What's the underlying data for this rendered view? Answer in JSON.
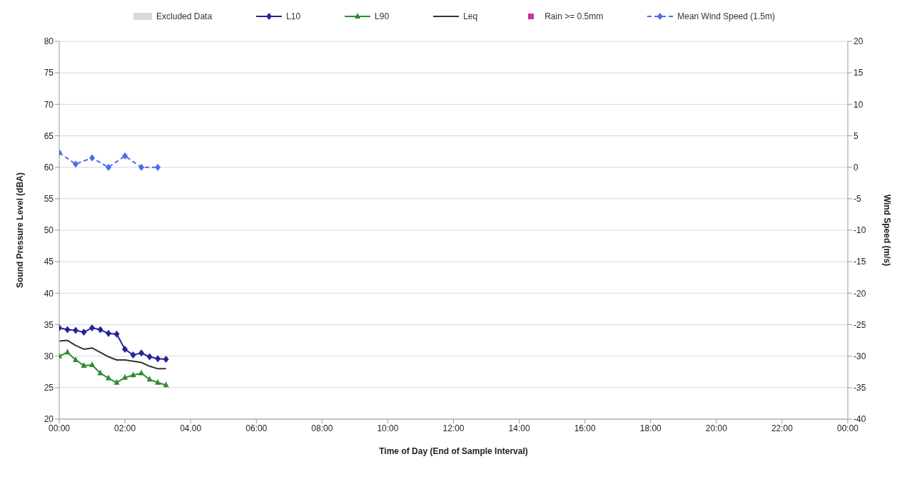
{
  "chart_data": {
    "type": "line",
    "xlabel": "Time of Day (End of Sample Interval)",
    "ylabel": "Sound Pressure Level (dBA)",
    "y2label": "Wind Speed (m/s)",
    "x": [
      0,
      0.25,
      0.5,
      0.75,
      1,
      1.25,
      1.5,
      1.75,
      2,
      2.25,
      2.5,
      2.75,
      3,
      3.25
    ],
    "xlim": [
      0,
      24
    ],
    "xticks": [
      {
        "value": 0,
        "label": "00:00"
      },
      {
        "value": 2,
        "label": "02:00"
      },
      {
        "value": 4,
        "label": "04.00"
      },
      {
        "value": 6,
        "label": "06:00"
      },
      {
        "value": 8,
        "label": "08:00"
      },
      {
        "value": 10,
        "label": "10:00"
      },
      {
        "value": 12,
        "label": "12:00"
      },
      {
        "value": 14,
        "label": "14:00"
      },
      {
        "value": 16,
        "label": "16:00"
      },
      {
        "value": 18,
        "label": "18:00"
      },
      {
        "value": 20,
        "label": "20:00"
      },
      {
        "value": 22,
        "label": "22:00"
      },
      {
        "value": 24,
        "label": "00:00"
      }
    ],
    "ylim": [
      20,
      80
    ],
    "yticks": [
      20,
      25,
      30,
      35,
      40,
      45,
      50,
      55,
      60,
      65,
      70,
      75,
      80
    ],
    "y2lim": [
      -40,
      20
    ],
    "y2ticks": [
      -40,
      -35,
      -30,
      -25,
      -20,
      -15,
      -10,
      -5,
      0,
      5,
      10,
      15,
      20
    ],
    "grid": "y",
    "legend": "top",
    "series": [
      {
        "name": "Excluded Data",
        "type": "area",
        "color": "#d9d9d9",
        "values": [
          null,
          null,
          null,
          null,
          null,
          null,
          null,
          null,
          null,
          null,
          null,
          null,
          null,
          null
        ]
      },
      {
        "name": "L10",
        "color": "#23239a",
        "marker": "diamond",
        "line_style": "solid",
        "values": [
          34.5,
          34.2,
          34.1,
          33.8,
          34.5,
          34.2,
          33.6,
          33.5,
          31.1,
          30.2,
          30.5,
          29.9,
          29.6,
          29.5
        ]
      },
      {
        "name": "L90",
        "color": "#2e8b2e",
        "marker": "triangle",
        "line_style": "solid",
        "values": [
          30.0,
          30.6,
          29.4,
          28.5,
          28.6,
          27.3,
          26.5,
          25.8,
          26.6,
          27.0,
          27.3,
          26.3,
          25.8,
          25.4
        ]
      },
      {
        "name": "Leq",
        "color": "#333333",
        "marker": "none",
        "line_style": "solid",
        "values": [
          32.4,
          32.5,
          31.7,
          31.1,
          31.3,
          30.6,
          29.9,
          29.4,
          29.4,
          29.2,
          29.0,
          28.4,
          28.0,
          28.0
        ]
      },
      {
        "name": "Rain >= 0.5mm",
        "type": "scatter",
        "color": "#cc3399",
        "marker": "square",
        "values": [
          null,
          null,
          null,
          null,
          null,
          null,
          null,
          null,
          null,
          null,
          null,
          null,
          null,
          null
        ]
      },
      {
        "name": "Mean Wind Speed (1.5m)",
        "color": "#4a6cf0",
        "marker": "diamond",
        "line_style": "dashed",
        "axis": "y2",
        "x": [
          0,
          0.5,
          1,
          1.5,
          2,
          2.5,
          3
        ],
        "values": [
          2.3,
          0.5,
          1.5,
          0,
          1.8,
          0,
          0
        ]
      }
    ]
  }
}
